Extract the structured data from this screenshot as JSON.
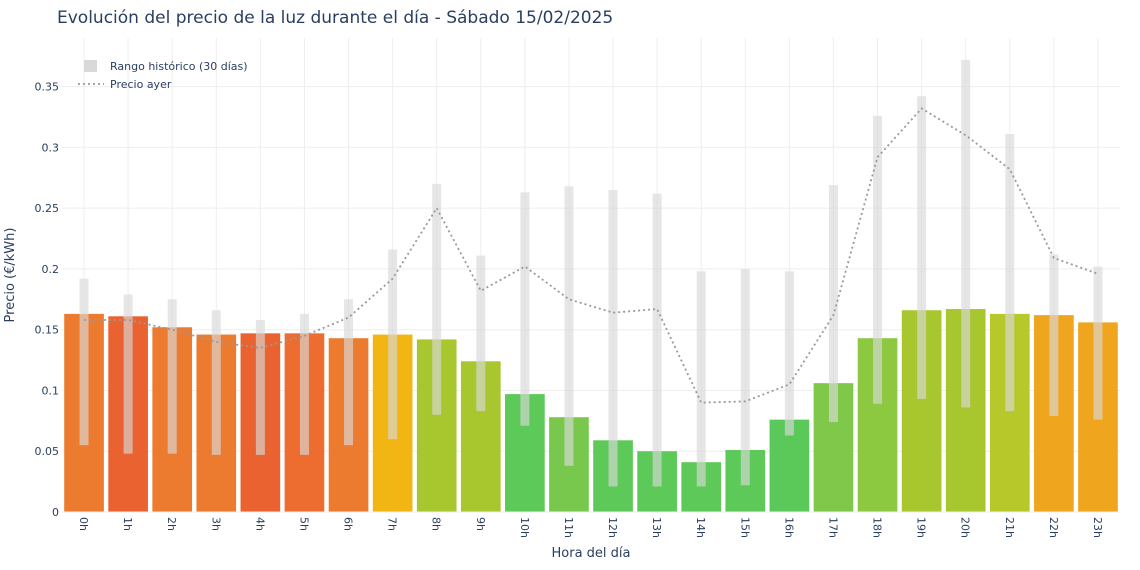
{
  "chart_data": {
    "type": "bar",
    "title": "Evolución del precio de la luz durante el día - Sábado 15/02/2025",
    "xlabel": "Hora del día",
    "ylabel": "Precio (€/kWh)",
    "ylim": [
      0,
      0.39
    ],
    "yticks": [
      0,
      0.05,
      0.1,
      0.15,
      0.2,
      0.25,
      0.3,
      0.35
    ],
    "ytick_labels": [
      "0",
      "0.05",
      "0.1",
      "0.15",
      "0.2",
      "0.25",
      "0.3",
      "0.35"
    ],
    "categories": [
      "0h",
      "1h",
      "2h",
      "3h",
      "4h",
      "5h",
      "6h",
      "7h",
      "8h",
      "9h",
      "10h",
      "11h",
      "12h",
      "13h",
      "14h",
      "15h",
      "16h",
      "17h",
      "18h",
      "19h",
      "20h",
      "21h",
      "22h",
      "23h"
    ],
    "grid": true,
    "legend_position": "top-left",
    "series": [
      {
        "type": "bar",
        "values": [
          0.163,
          0.161,
          0.152,
          0.146,
          0.147,
          0.147,
          0.143,
          0.146,
          0.142,
          0.124,
          0.097,
          0.078,
          0.059,
          0.05,
          0.041,
          0.051,
          0.076,
          0.106,
          0.143,
          0.166,
          0.167,
          0.163,
          0.162,
          0.156
        ],
        "colors": [
          "#ed7b2f",
          "#ea6230",
          "#ed7b2f",
          "#ed7b2f",
          "#ea6230",
          "#ec6d2f",
          "#ed7b2f",
          "#f1b514",
          "#a8c62e",
          "#a8c62e",
          "#5dc958",
          "#79c84e",
          "#5dc958",
          "#5dc958",
          "#5dc958",
          "#5dc958",
          "#5ac95a",
          "#80c84a",
          "#8cc840",
          "#a8c62e",
          "#a8c62e",
          "#b6c82a",
          "#f0a51e",
          "#f0a51e"
        ]
      },
      {
        "name": "Rango histórico (30 días)",
        "type": "range",
        "low": [
          0.055,
          0.048,
          0.048,
          0.047,
          0.047,
          0.047,
          0.055,
          0.06,
          0.08,
          0.083,
          0.071,
          0.038,
          0.021,
          0.021,
          0.021,
          0.022,
          0.063,
          0.074,
          0.089,
          0.093,
          0.086,
          0.083,
          0.079,
          0.076
        ],
        "high": [
          0.192,
          0.179,
          0.175,
          0.166,
          0.158,
          0.163,
          0.175,
          0.216,
          0.27,
          0.211,
          0.263,
          0.268,
          0.265,
          0.262,
          0.198,
          0.2,
          0.198,
          0.269,
          0.326,
          0.342,
          0.372,
          0.311,
          0.212,
          0.202
        ],
        "color": "#d9d9d9"
      },
      {
        "name": "Precio ayer",
        "type": "line",
        "values": [
          0.158,
          0.158,
          0.15,
          0.14,
          0.135,
          0.145,
          0.16,
          0.192,
          0.25,
          0.182,
          0.202,
          0.175,
          0.164,
          0.167,
          0.09,
          0.091,
          0.105,
          0.162,
          0.292,
          0.332,
          0.31,
          0.282,
          0.209,
          0.196
        ],
        "color": "#999999"
      }
    ]
  }
}
